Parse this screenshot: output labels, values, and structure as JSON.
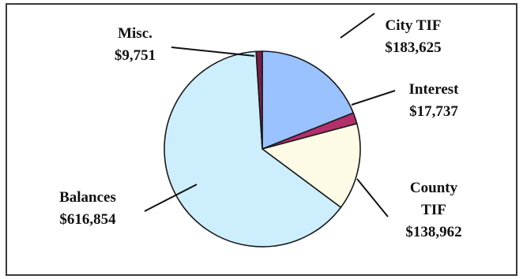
{
  "chart_data": {
    "type": "pie",
    "slices": [
      {
        "name": "City TIF",
        "value": 183625,
        "label_lines": [
          "City TIF",
          "$183,625"
        ],
        "color": "#99c2ff"
      },
      {
        "name": "Interest",
        "value": 17737,
        "label_lines": [
          "Interest",
          "$17,737"
        ],
        "color": "#b3306b"
      },
      {
        "name": "County TIF",
        "value": 138962,
        "label_lines": [
          "County",
          "TIF",
          "$138,962"
        ],
        "color": "#fdfbe6"
      },
      {
        "name": "Balances",
        "value": 616854,
        "label_lines": [
          "Balances",
          "$616,854"
        ],
        "color": "#cdeefd"
      },
      {
        "name": "Misc.",
        "value": 9751,
        "label_lines": [
          "Misc.",
          "$9,751"
        ],
        "color": "#7a1f4a"
      }
    ],
    "start_position": "12 o'clock",
    "direction": "clockwise",
    "legend": "none"
  }
}
